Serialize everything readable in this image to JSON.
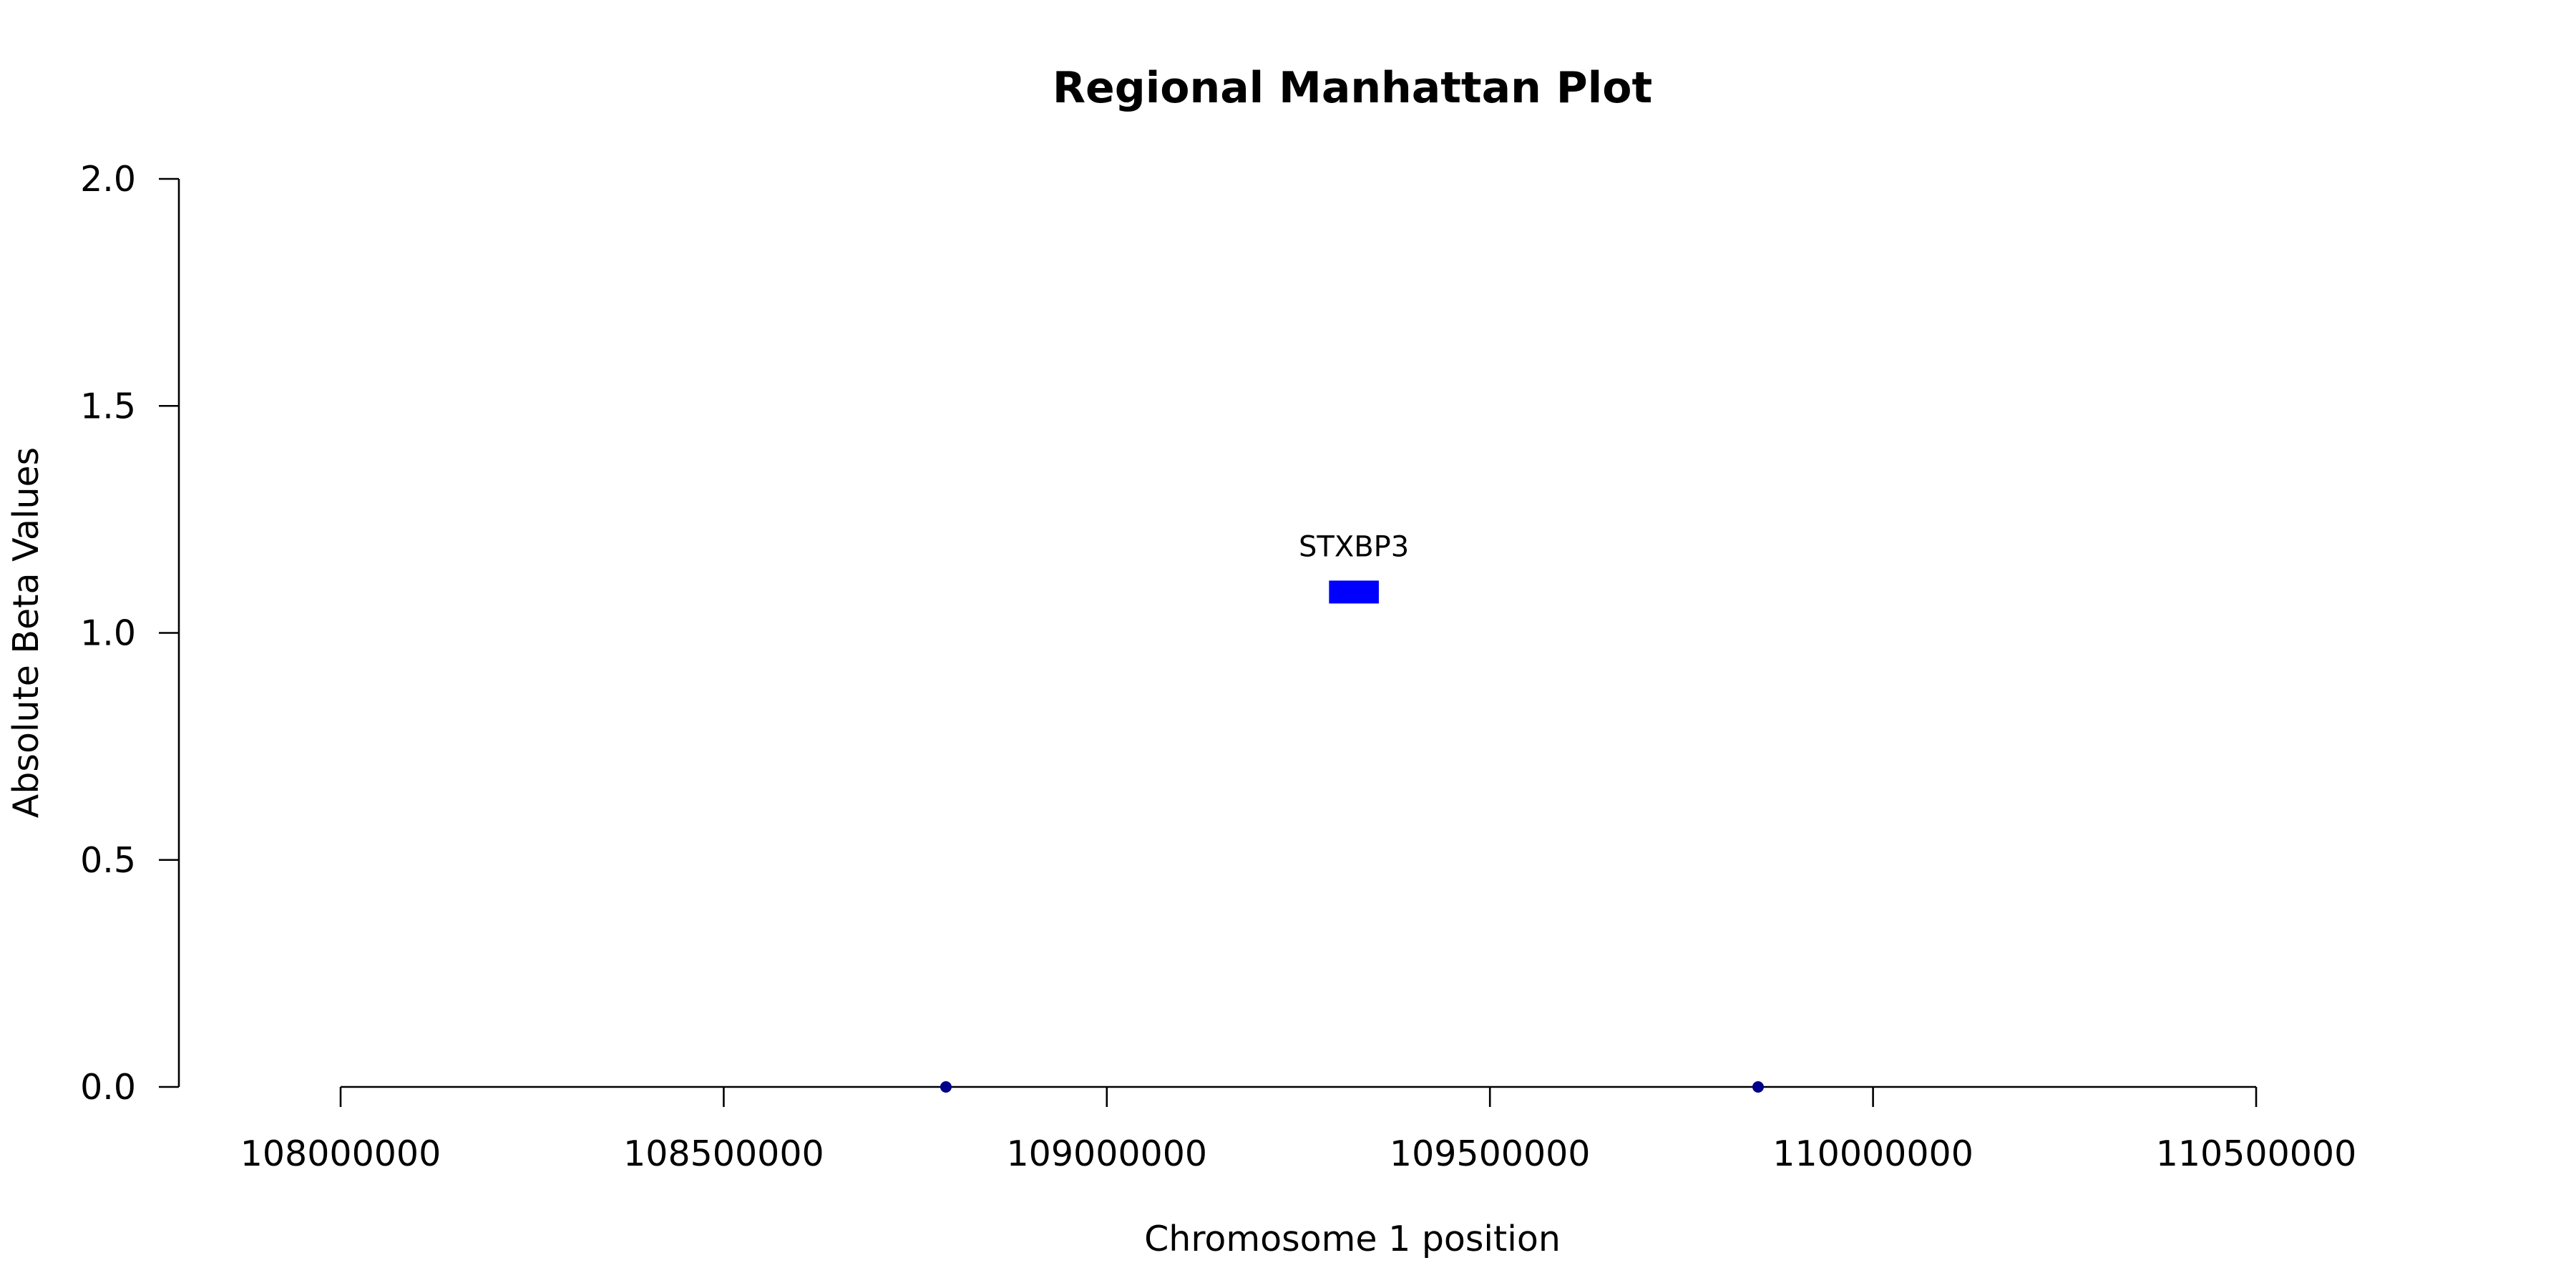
{
  "chart_data": {
    "type": "scatter",
    "title": "Regional Manhattan Plot",
    "xlabel": "Chromosome 1 position",
    "ylabel": "Absolute Beta Values",
    "xlim": [
      108000000,
      110500000
    ],
    "ylim": [
      0.0,
      2.0
    ],
    "x_ticks": [
      108000000,
      108500000,
      109000000,
      109500000,
      110000000,
      110500000
    ],
    "y_ticks": [
      "0.0",
      "0.5",
      "1.0",
      "1.5",
      "2.0"
    ],
    "grid": false,
    "points": [
      {
        "x": 108790000,
        "y": 0.0,
        "color": "#00008b"
      },
      {
        "x": 109850000,
        "y": 0.0,
        "color": "#00008b"
      }
    ],
    "genes": [
      {
        "name": "STXBP3",
        "start": 109290000,
        "end": 109355000,
        "y": 1.09,
        "color": "#0000ff"
      }
    ]
  }
}
